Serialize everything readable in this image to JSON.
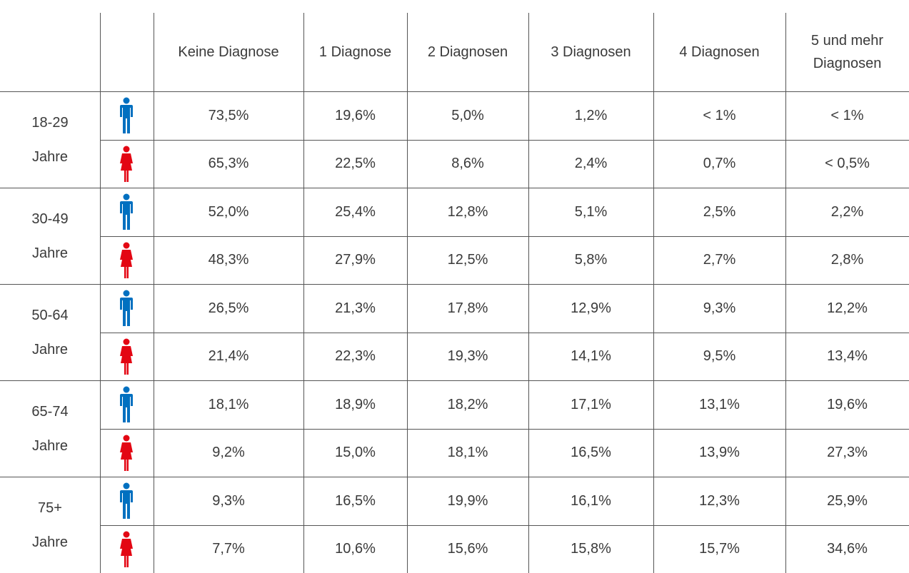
{
  "table": {
    "headers": [
      "Keine Diagnose",
      "1 Diagnose",
      "2 Diagnosen",
      "3 Diagnosen",
      "4 Diagnosen",
      "5 und mehr Diagnosen"
    ],
    "groups": [
      {
        "label": [
          "18-29",
          "Jahre"
        ],
        "rows": [
          [
            "73,5%",
            "19,6%",
            "5,0%",
            "1,2%",
            "< 1%",
            "< 1%"
          ],
          [
            "65,3%",
            "22,5%",
            "8,6%",
            "2,4%",
            "0,7%",
            "< 0,5%"
          ]
        ]
      },
      {
        "label": [
          "30-49",
          "Jahre"
        ],
        "rows": [
          [
            "52,0%",
            "25,4%",
            "12,8%",
            "5,1%",
            "2,5%",
            "2,2%"
          ],
          [
            "48,3%",
            "27,9%",
            "12,5%",
            "5,8%",
            "2,7%",
            "2,8%"
          ]
        ]
      },
      {
        "label": [
          "50-64",
          "Jahre"
        ],
        "rows": [
          [
            "26,5%",
            "21,3%",
            "17,8%",
            "12,9%",
            "9,3%",
            "12,2%"
          ],
          [
            "21,4%",
            "22,3%",
            "19,3%",
            "14,1%",
            "9,5%",
            "13,4%"
          ]
        ]
      },
      {
        "label": [
          "65-74",
          "Jahre"
        ],
        "rows": [
          [
            "18,1%",
            "18,9%",
            "18,2%",
            "17,1%",
            "13,1%",
            "19,6%"
          ],
          [
            "9,2%",
            "15,0%",
            "18,1%",
            "16,5%",
            "13,9%",
            "27,3%"
          ]
        ]
      },
      {
        "label": [
          "75+",
          "Jahre"
        ],
        "rows": [
          [
            "9,3%",
            "16,5%",
            "19,9%",
            "16,1%",
            "12,3%",
            "25,9%"
          ],
          [
            "7,7%",
            "10,6%",
            "15,6%",
            "15,8%",
            "15,7%",
            "34,6%"
          ]
        ]
      }
    ]
  }
}
